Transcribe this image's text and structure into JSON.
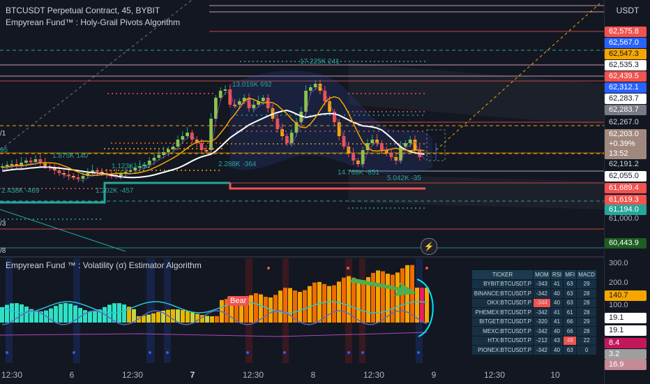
{
  "header": {
    "title": "BTCUSDT Perpetual Contract, 45, BYBIT",
    "indicator_main": "Empyrean Fund™ : Holy-Grail Pivots Algorithm",
    "indicator_sub": "Empyrean Fund ™ : Volatility (σ) Estimator Algorithm"
  },
  "axis": {
    "currency": "USDT",
    "price_labels": [
      {
        "text": "62,575.8",
        "bg": "#f05350",
        "fg": "#ffffff"
      },
      {
        "text": "62,567.0",
        "bg": "#2962ff",
        "fg": "#ffffff"
      },
      {
        "text": "62,547.3",
        "bg": "#f7a600",
        "fg": "#131722"
      },
      {
        "text": "62,535.3",
        "bg": "#ffffff",
        "fg": "#131722"
      },
      {
        "text": "62,439.5",
        "bg": "#f05350",
        "fg": "#ffffff"
      },
      {
        "text": "62,312.1",
        "bg": "#2962ff",
        "fg": "#ffffff"
      },
      {
        "text": "62,283.7",
        "bg": "#ffffff",
        "fg": "#131722"
      },
      {
        "text": "62,283.7",
        "bg": "#787b86",
        "fg": "#ffffff"
      },
      {
        "text": "62,267.0",
        "bg": "",
        "fg": "#d1d4dc"
      },
      {
        "text": "62,203.0",
        "bg": "#a1887f",
        "fg": "#ffffff"
      },
      {
        "text": "+0.39%",
        "bg": "#a1887f",
        "fg": "#ffffff"
      },
      {
        "text": "13:52",
        "bg": "#a1887f",
        "fg": "#ffffff"
      },
      {
        "text": "62,191.2",
        "bg": "",
        "fg": "#d1d4dc"
      },
      {
        "text": "62,055.0",
        "bg": "#ffffff",
        "fg": "#131722"
      },
      {
        "text": "61,689.4",
        "bg": "#f05350",
        "fg": "#ffffff"
      },
      {
        "text": "61,619.3",
        "bg": "#f05350",
        "fg": "#ffffff"
      },
      {
        "text": "61,194.0",
        "bg": "#26a69a",
        "fg": "#ffffff"
      },
      {
        "text": "61,000.0",
        "bg": "",
        "fg": "#b2b5be"
      },
      {
        "text": "60,443.9",
        "bg": "#1b5e20",
        "fg": "#ffffff"
      }
    ],
    "sub_labels": [
      {
        "text": "300.0",
        "bg": "",
        "fg": "#b2b5be"
      },
      {
        "text": "200.0",
        "bg": "",
        "fg": "#b2b5be"
      },
      {
        "text": "140.7",
        "bg": "#f7a600",
        "fg": "#131722"
      },
      {
        "text": "100.0",
        "bg": "",
        "fg": "#b2b5be"
      },
      {
        "text": "19.1",
        "bg": "#ffffff",
        "fg": "#131722"
      },
      {
        "text": "19.1",
        "bg": "#ffffff",
        "fg": "#131722"
      },
      {
        "text": "8.4",
        "bg": "#c2185b",
        "fg": "#ffffff"
      },
      {
        "text": "3.2",
        "bg": "#9e9e9e",
        "fg": "#ffffff"
      },
      {
        "text": "16.9",
        "bg": "#c48a95",
        "fg": "#ffffff"
      }
    ]
  },
  "annotations": {
    "vol_top": "17.225K 241",
    "vol_a": "13.016K 692",
    "vol_b": "1.875K 140",
    "vol_c": "1.123K -164",
    "vol_d": "2.288K -364",
    "vol_e": "2.438K -469",
    "vol_f": "1.202K -457",
    "vol_g": "14.768K -851",
    "vol_h": "5.042K -35",
    "left_a": "95",
    "left_b": "/1",
    "left_c": "/3",
    "left_d": "/8"
  },
  "bear_label": "Bear",
  "x_axis": [
    {
      "text": "12:30",
      "x": 17,
      "bold": false
    },
    {
      "text": "6",
      "x": 103,
      "bold": false
    },
    {
      "text": "12:30",
      "x": 190,
      "bold": false
    },
    {
      "text": "7",
      "x": 276,
      "bold": true
    },
    {
      "text": "12:30",
      "x": 363,
      "bold": false
    },
    {
      "text": "8",
      "x": 449,
      "bold": false
    },
    {
      "text": "12:30",
      "x": 536,
      "bold": false
    },
    {
      "text": "9",
      "x": 622,
      "bold": false
    },
    {
      "text": "12:30",
      "x": 709,
      "bold": false
    },
    {
      "text": "10",
      "x": 796,
      "bold": false
    }
  ],
  "table": {
    "headers": [
      "TICKER",
      "MOM",
      "RSI",
      "MFI",
      "MACD"
    ],
    "rows": [
      [
        "BYBIT:BTCUSDT.P",
        "-343",
        "41",
        "63",
        "29"
      ],
      [
        "BINANCE:BTCUSDT.P",
        "-342",
        "40",
        "63",
        "28"
      ],
      [
        "OKX:BTCUSDT.P",
        "-344",
        "40",
        "63",
        "28"
      ],
      [
        "PHEMEX:BTCUSDT.P",
        "-342",
        "41",
        "61",
        "28"
      ],
      [
        "BITGET:BTCUSDT.P",
        "-320",
        "41",
        "66",
        "29"
      ],
      [
        "MEXC:BTCUSDT.P",
        "-342",
        "40",
        "66",
        "28"
      ],
      [
        "HTX:BTCUSDT.P",
        "-212",
        "43",
        "48",
        "22"
      ],
      [
        "PIONEX:BTCUSDT.P",
        "-342",
        "40",
        "63",
        "0"
      ]
    ],
    "highlight": {
      "row": 2,
      "col": 1,
      "color": "#f05350"
    },
    "highlight2": {
      "row": 6,
      "col": 3,
      "color": "#f05350"
    }
  },
  "colors": {
    "bg": "#131722",
    "up": "#26a69a",
    "down": "#f05350",
    "orange": "#f7a600",
    "cyan": "#00e5ff"
  }
}
